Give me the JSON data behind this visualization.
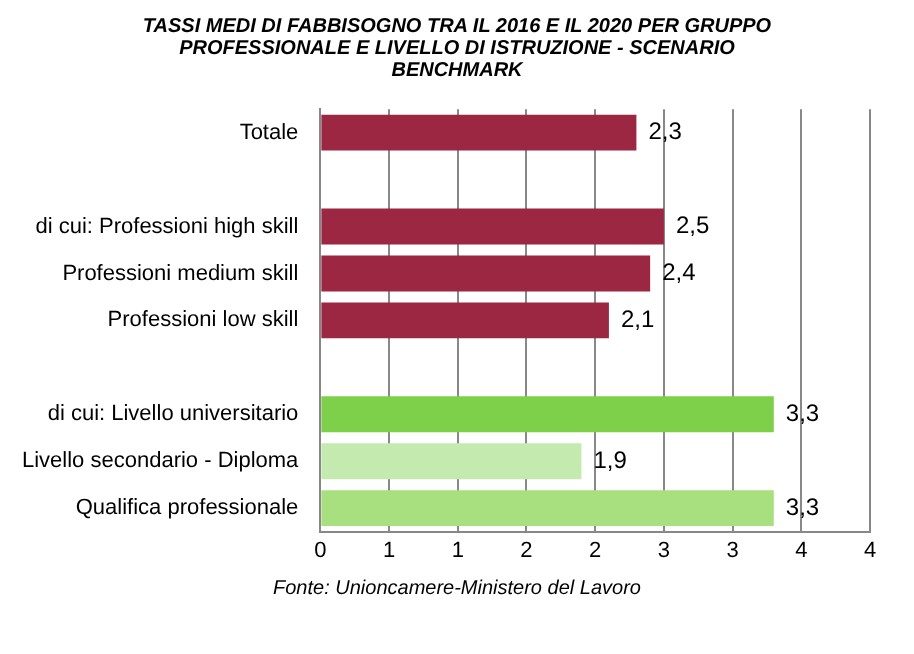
{
  "chart_data": {
    "type": "bar",
    "orientation": "horizontal",
    "title": "TASSI MEDI DI FABBISOGNO TRA IL 2016 E IL 2020 PER GRUPPO PROFESSIONALE E LIVELLO DI ISTRUZIONE - SCENARIO BENCHMARK",
    "categories": [
      "Totale",
      null,
      "di cui: Professioni high skill",
      "Professioni medium skill",
      "Professioni low skill",
      null,
      "di cui: Livello universitario",
      "Livello secondario - Diploma",
      "Qualifica professionale"
    ],
    "values": [
      2.3,
      null,
      2.5,
      2.4,
      2.1,
      null,
      3.3,
      1.9,
      3.3
    ],
    "value_labels": [
      "2,3",
      null,
      "2,5",
      "2,4",
      "2,1",
      null,
      "3,3",
      "1,9",
      "3,3"
    ],
    "colors": [
      "#9b2743",
      null,
      "#9b2743",
      "#9b2743",
      "#9b2743",
      null,
      "#7ed04b",
      "#c5eab0",
      "#a8e07f"
    ],
    "xlim": [
      0,
      4
    ],
    "xticks": [
      0,
      {
        "value": 0.5,
        "label": "1"
      },
      1,
      {
        "value": 1.5,
        "label": "2"
      },
      2,
      {
        "value": 2.5,
        "label": "3"
      },
      3,
      {
        "value": 3.5,
        "label": "4"
      },
      4
    ],
    "grid": "x",
    "legend": false,
    "annotations": [
      "Fonte: Unioncamere-Ministero del Lavoro"
    ]
  }
}
